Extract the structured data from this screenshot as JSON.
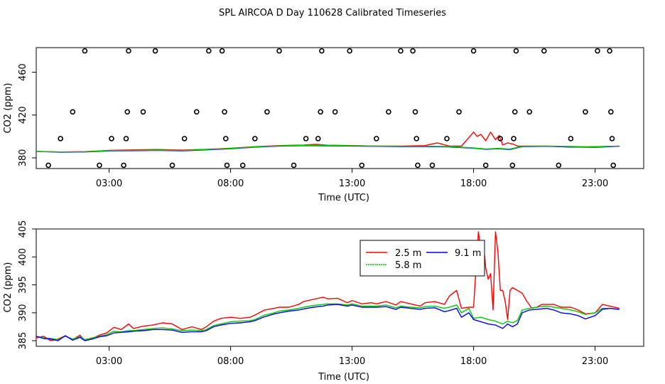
{
  "figure": {
    "title": "SPL AIRCOA D  Day 110628  Calibrated Timeseries"
  },
  "chart_data": [
    {
      "type": "scatter",
      "id": "top",
      "title": "",
      "xlabel": "Time (UTC)",
      "ylabel": "CO2 (ppm)",
      "xlim": [
        0,
        25
      ],
      "ylim": [
        370,
        483
      ],
      "xticks": [
        {
          "value": 3,
          "label": "03:00"
        },
        {
          "value": 8,
          "label": "08:00"
        },
        {
          "value": 13,
          "label": "13:00"
        },
        {
          "value": 18,
          "label": "18:00"
        },
        {
          "value": 23,
          "label": "23:00"
        }
      ],
      "yticks": [
        {
          "value": 380,
          "label": "380"
        },
        {
          "value": 420,
          "label": "420"
        },
        {
          "value": 460,
          "label": "460"
        }
      ],
      "markers": {
        "color": "#000000",
        "points": [
          [
            0.5,
            373
          ],
          [
            1.0,
            398
          ],
          [
            1.5,
            423
          ],
          [
            2.0,
            480
          ],
          [
            2.6,
            373
          ],
          [
            3.1,
            398
          ],
          [
            3.6,
            373
          ],
          [
            3.7,
            398
          ],
          [
            3.75,
            423
          ],
          [
            3.8,
            480
          ],
          [
            4.4,
            423
          ],
          [
            4.9,
            480
          ],
          [
            5.6,
            373
          ],
          [
            6.1,
            398
          ],
          [
            6.6,
            423
          ],
          [
            7.1,
            480
          ],
          [
            7.65,
            480
          ],
          [
            7.75,
            423
          ],
          [
            7.8,
            398
          ],
          [
            7.85,
            373
          ],
          [
            8.5,
            373
          ],
          [
            9.0,
            398
          ],
          [
            9.5,
            423
          ],
          [
            10.0,
            480
          ],
          [
            10.6,
            373
          ],
          [
            11.1,
            398
          ],
          [
            11.6,
            398
          ],
          [
            11.7,
            423
          ],
          [
            11.75,
            480
          ],
          [
            12.3,
            423
          ],
          [
            12.9,
            480
          ],
          [
            13.4,
            373
          ],
          [
            14.0,
            398
          ],
          [
            14.5,
            423
          ],
          [
            15.0,
            480
          ],
          [
            15.5,
            480
          ],
          [
            15.6,
            423
          ],
          [
            15.65,
            398
          ],
          [
            15.7,
            373
          ],
          [
            16.3,
            373
          ],
          [
            16.9,
            398
          ],
          [
            17.4,
            423
          ],
          [
            18.0,
            480
          ],
          [
            18.5,
            373
          ],
          [
            19.1,
            398
          ],
          [
            19.6,
            373
          ],
          [
            19.65,
            398
          ],
          [
            19.7,
            423
          ],
          [
            19.75,
            480
          ],
          [
            20.3,
            423
          ],
          [
            20.9,
            480
          ],
          [
            21.5,
            373
          ],
          [
            22.0,
            398
          ],
          [
            22.6,
            423
          ],
          [
            23.1,
            480
          ],
          [
            23.6,
            480
          ],
          [
            23.65,
            423
          ],
          [
            23.7,
            398
          ],
          [
            23.75,
            373
          ]
        ]
      },
      "series": [
        {
          "name": "2.5 m",
          "color": "#ff0000",
          "x": [
            0.0,
            1.0,
            2.0,
            3.0,
            4.0,
            5.0,
            6.0,
            7.0,
            8.0,
            9.0,
            10.0,
            11.0,
            11.5,
            12.0,
            13.0,
            14.0,
            15.0,
            16.0,
            16.5,
            17.0,
            17.5,
            18.0,
            18.15,
            18.3,
            18.5,
            18.7,
            18.9,
            19.05,
            19.2,
            19.4,
            19.6,
            19.8,
            20.0,
            21.0,
            22.0,
            23.0,
            24.0
          ],
          "y": [
            386,
            385.5,
            385.8,
            387,
            387.5,
            387.8,
            387.2,
            388,
            389,
            390.5,
            391.5,
            392,
            392.6,
            391.8,
            391.5,
            391,
            391,
            391.5,
            394,
            391,
            391,
            404,
            400,
            402,
            396,
            404,
            397,
            401,
            392,
            394,
            393,
            391,
            391,
            391,
            390,
            390.5,
            391
          ]
        },
        {
          "name": "9.1 m",
          "color": "#0000ff",
          "x": [
            0.0,
            1.0,
            2.0,
            3.0,
            4.0,
            5.0,
            6.0,
            7.0,
            8.0,
            9.0,
            10.0,
            11.0,
            12.0,
            13.0,
            14.0,
            15.0,
            16.0,
            17.0,
            18.0,
            18.5,
            19.0,
            19.5,
            20.0,
            21.0,
            22.0,
            23.0,
            24.0
          ],
          "y": [
            386,
            385.3,
            385.5,
            386.5,
            386.7,
            387,
            386.5,
            387.5,
            388.5,
            390,
            391,
            391.5,
            391.2,
            391,
            390.8,
            390.5,
            390.5,
            390.2,
            389,
            388,
            388.5,
            387.8,
            390.5,
            390.8,
            390.2,
            389.8,
            390.8
          ]
        },
        {
          "name": "5.8 m",
          "color": "#00cc00",
          "x": [
            0.0,
            1.0,
            2.0,
            3.0,
            4.0,
            5.0,
            6.0,
            7.0,
            8.0,
            9.0,
            10.0,
            11.0,
            12.0,
            13.0,
            14.0,
            15.0,
            16.0,
            17.0,
            18.0,
            18.5,
            19.0,
            19.5,
            20.0,
            21.0,
            22.0,
            23.0,
            24.0
          ],
          "y": [
            386,
            385.5,
            385.7,
            386.8,
            387,
            387.3,
            386.8,
            387.8,
            388.8,
            390.3,
            391.2,
            391.8,
            391.6,
            391.3,
            391.1,
            390.8,
            390.8,
            390.6,
            389.3,
            388.3,
            388.8,
            388.2,
            390.8,
            391.1,
            390.6,
            390.2,
            391
          ]
        }
      ]
    },
    {
      "type": "line",
      "id": "bottom",
      "title": "",
      "xlabel": "Time (UTC)",
      "ylabel": "CO2 (ppm)",
      "xlim": [
        0,
        25
      ],
      "ylim": [
        384,
        405
      ],
      "xticks": [
        {
          "value": 3,
          "label": "03:00"
        },
        {
          "value": 8,
          "label": "08:00"
        },
        {
          "value": 13,
          "label": "13:00"
        },
        {
          "value": 18,
          "label": "18:00"
        },
        {
          "value": 23,
          "label": "23:00"
        }
      ],
      "yticks": [
        {
          "value": 385,
          "label": "385"
        },
        {
          "value": 390,
          "label": "390"
        },
        {
          "value": 395,
          "label": "395"
        },
        {
          "value": 400,
          "label": "400"
        },
        {
          "value": 405,
          "label": "405"
        }
      ],
      "legend": {
        "placement": "top-center",
        "entries": [
          {
            "label": "2.5 m",
            "color": "#ff0000"
          },
          {
            "label": "9.1 m",
            "color": "#0000ff"
          },
          {
            "label": "5.8 m",
            "color": "#00cc00"
          }
        ]
      },
      "series": [
        {
          "name": "2.5 m",
          "color": "#ff0000",
          "x": [
            0.0,
            0.3,
            0.6,
            0.9,
            1.2,
            1.5,
            1.8,
            2.0,
            2.3,
            2.6,
            2.9,
            3.2,
            3.5,
            3.8,
            4.0,
            4.4,
            4.8,
            5.2,
            5.6,
            6.0,
            6.4,
            6.8,
            7.0,
            7.3,
            7.6,
            8.0,
            8.4,
            8.8,
            9.0,
            9.4,
            9.8,
            10.0,
            10.4,
            10.8,
            11.0,
            11.4,
            11.8,
            12.0,
            12.4,
            12.8,
            13.0,
            13.4,
            13.8,
            14.0,
            14.4,
            14.8,
            15.0,
            15.4,
            15.8,
            16.0,
            16.4,
            16.8,
            17.0,
            17.3,
            17.5,
            17.8,
            18.0,
            18.1,
            18.2,
            18.3,
            18.4,
            18.5,
            18.6,
            18.7,
            18.8,
            18.9,
            19.0,
            19.1,
            19.2,
            19.3,
            19.4,
            19.5,
            19.6,
            19.8,
            20.0,
            20.2,
            20.4,
            20.6,
            20.8,
            21.0,
            21.3,
            21.6,
            22.0,
            22.3,
            22.6,
            23.0,
            23.3,
            23.6,
            24.0
          ],
          "y": [
            385.5,
            385.8,
            385.0,
            385.3,
            385.9,
            385.2,
            386.0,
            385.0,
            385.4,
            386.0,
            386.4,
            387.4,
            387.0,
            388.0,
            387.2,
            387.6,
            387.8,
            388.2,
            388.0,
            387.0,
            387.5,
            387.0,
            387.5,
            388.5,
            389.0,
            389.2,
            389.0,
            389.2,
            389.6,
            390.5,
            390.8,
            391.0,
            391.0,
            391.5,
            392.0,
            392.4,
            392.8,
            392.5,
            392.6,
            391.8,
            392.2,
            391.6,
            391.8,
            391.6,
            392.0,
            391.4,
            392.0,
            391.6,
            391.2,
            391.8,
            392.0,
            391.5,
            393.0,
            394.0,
            390.8,
            391.0,
            391.0,
            398.0,
            404.5,
            401.0,
            402.5,
            398.0,
            396.0,
            397.0,
            390.5,
            404.5,
            401.0,
            394.0,
            394.0,
            392.0,
            388.8,
            394.0,
            394.5,
            394.0,
            393.5,
            392.0,
            390.8,
            391.0,
            391.5,
            391.5,
            391.5,
            391.0,
            391.0,
            390.5,
            389.8,
            390.0,
            391.5,
            391.2,
            390.8
          ]
        },
        {
          "name": "5.8 m",
          "color": "#00cc00",
          "x": [
            0.0,
            0.3,
            0.6,
            0.9,
            1.2,
            1.5,
            1.8,
            2.0,
            2.3,
            2.6,
            2.9,
            3.2,
            3.5,
            3.8,
            4.0,
            4.4,
            4.8,
            5.2,
            5.6,
            6.0,
            6.4,
            6.8,
            7.0,
            7.3,
            7.6,
            8.0,
            8.4,
            8.8,
            9.0,
            9.4,
            9.8,
            10.0,
            10.4,
            10.8,
            11.0,
            11.4,
            11.8,
            12.0,
            12.4,
            12.8,
            13.0,
            13.4,
            13.8,
            14.0,
            14.4,
            14.8,
            15.0,
            15.4,
            15.8,
            16.0,
            16.4,
            16.8,
            17.0,
            17.3,
            17.5,
            17.8,
            18.0,
            18.3,
            18.6,
            18.9,
            19.2,
            19.4,
            19.6,
            19.8,
            20.0,
            20.3,
            20.6,
            21.0,
            21.3,
            21.6,
            22.0,
            22.3,
            22.6,
            23.0,
            23.3,
            23.6,
            24.0
          ],
          "y": [
            385.8,
            385.5,
            385.4,
            385.2,
            385.8,
            385.3,
            385.7,
            385.2,
            385.5,
            385.8,
            386.1,
            386.7,
            386.6,
            386.8,
            386.8,
            387.0,
            387.2,
            387.3,
            387.1,
            386.8,
            386.9,
            386.8,
            387.0,
            387.7,
            388.0,
            388.4,
            388.5,
            388.6,
            388.8,
            389.6,
            390.0,
            390.3,
            390.5,
            390.8,
            391.0,
            391.3,
            391.5,
            391.6,
            391.6,
            391.4,
            391.6,
            391.2,
            391.2,
            391.2,
            391.4,
            390.9,
            391.2,
            391.0,
            390.9,
            391.1,
            391.2,
            390.8,
            391.0,
            391.4,
            390.0,
            390.8,
            389.0,
            389.2,
            388.8,
            388.5,
            388.0,
            388.5,
            388.2,
            388.6,
            390.5,
            390.8,
            391.0,
            391.2,
            391.0,
            390.8,
            390.5,
            390.2,
            389.7,
            390.0,
            390.8,
            390.8,
            390.6
          ]
        },
        {
          "name": "9.1 m",
          "color": "#0000ff",
          "x": [
            0.0,
            0.3,
            0.6,
            0.9,
            1.2,
            1.5,
            1.8,
            2.0,
            2.3,
            2.6,
            2.9,
            3.2,
            3.5,
            3.8,
            4.0,
            4.4,
            4.8,
            5.2,
            5.6,
            6.0,
            6.4,
            6.8,
            7.0,
            7.3,
            7.6,
            8.0,
            8.4,
            8.8,
            9.0,
            9.4,
            9.8,
            10.0,
            10.4,
            10.8,
            11.0,
            11.4,
            11.8,
            12.0,
            12.4,
            12.8,
            13.0,
            13.4,
            13.8,
            14.0,
            14.4,
            14.8,
            15.0,
            15.4,
            15.8,
            16.0,
            16.4,
            16.8,
            17.0,
            17.3,
            17.5,
            17.8,
            18.0,
            18.3,
            18.6,
            18.9,
            19.2,
            19.4,
            19.6,
            19.8,
            20.0,
            20.3,
            20.6,
            21.0,
            21.3,
            21.6,
            22.0,
            22.3,
            22.6,
            23.0,
            23.3,
            23.6,
            24.0
          ],
          "y": [
            385.8,
            385.4,
            385.3,
            385.0,
            385.9,
            385.1,
            385.6,
            385.0,
            385.3,
            385.7,
            385.9,
            386.4,
            386.5,
            386.6,
            386.7,
            386.8,
            387.0,
            387.0,
            386.9,
            386.5,
            386.6,
            386.6,
            386.8,
            387.5,
            387.8,
            388.1,
            388.2,
            388.4,
            388.6,
            389.3,
            389.8,
            390.0,
            390.3,
            390.5,
            390.7,
            391.0,
            391.2,
            391.4,
            391.5,
            391.2,
            391.4,
            391.0,
            391.0,
            391.0,
            391.1,
            390.6,
            391.0,
            390.8,
            390.6,
            390.8,
            390.9,
            390.2,
            390.4,
            390.8,
            389.2,
            390.0,
            388.8,
            388.4,
            388.0,
            387.8,
            387.2,
            388.0,
            387.5,
            388.0,
            390.0,
            390.5,
            390.6,
            390.8,
            390.5,
            390.0,
            389.8,
            389.5,
            388.9,
            389.5,
            390.6,
            390.8,
            390.6
          ]
        }
      ]
    }
  ]
}
